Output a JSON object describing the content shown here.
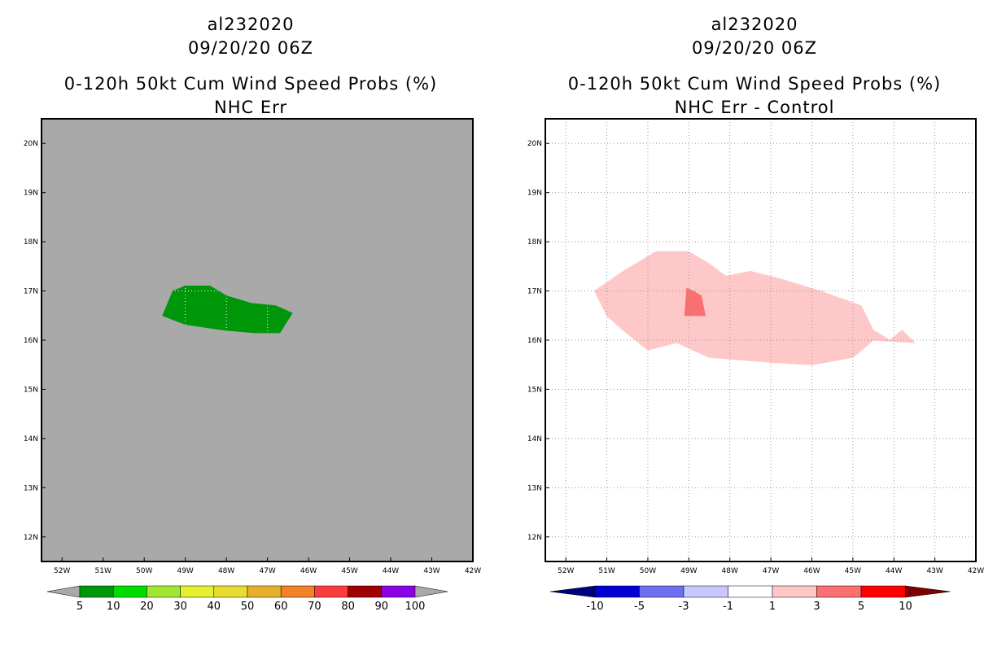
{
  "panels": [
    {
      "storm": "al232020",
      "datetime": "09/20/20 06Z",
      "title": "0-120h 50kt Cum Wind Speed Probs (%)",
      "subtitle": "NHC Err",
      "background": "#a9a9a9",
      "lon_ticks": [
        "52W",
        "51W",
        "50W",
        "49W",
        "48W",
        "47W",
        "46W",
        "45W",
        "44W",
        "43W",
        "42W"
      ],
      "lat_ticks": [
        "20N",
        "19N",
        "18N",
        "17N",
        "16N",
        "15N",
        "14N",
        "13N",
        "12N"
      ],
      "colorbar": {
        "labels": [
          "5",
          "10",
          "20",
          "30",
          "40",
          "50",
          "60",
          "70",
          "80",
          "90",
          "100"
        ],
        "colors": [
          "#00960a",
          "#00dc00",
          "#a0e632",
          "#e6f032",
          "#e6dc32",
          "#e6af2d",
          "#f08228",
          "#fa3c3c",
          "#a00000",
          "#8c00e6"
        ],
        "end_color": "#a9a9a9"
      },
      "regions": [
        {
          "label": "5-10%",
          "color": "#00960a",
          "points": [
            [
              -49.55,
              16.5
            ],
            [
              -49.3,
              17.0
            ],
            [
              -49.0,
              17.1
            ],
            [
              -48.4,
              17.1
            ],
            [
              -48.0,
              16.9
            ],
            [
              -47.4,
              16.75
            ],
            [
              -46.8,
              16.7
            ],
            [
              -46.4,
              16.55
            ],
            [
              -46.7,
              16.15
            ],
            [
              -47.3,
              16.15
            ],
            [
              -48.0,
              16.2
            ],
            [
              -49.0,
              16.32
            ],
            [
              -49.55,
              16.5
            ]
          ]
        }
      ]
    },
    {
      "storm": "al232020",
      "datetime": "09/20/20 06Z",
      "title": "0-120h 50kt Cum Wind Speed Probs (%)",
      "subtitle": "NHC Err - Control",
      "background": "#ffffff",
      "lon_ticks": [
        "52W",
        "51W",
        "50W",
        "49W",
        "48W",
        "47W",
        "46W",
        "45W",
        "44W",
        "43W",
        "42W"
      ],
      "lat_ticks": [
        "20N",
        "19N",
        "18N",
        "17N",
        "16N",
        "15N",
        "14N",
        "13N",
        "12N"
      ],
      "colorbar": {
        "labels": [
          "-10",
          "-5",
          "-3",
          "-1",
          "1",
          "3",
          "5",
          "10"
        ],
        "colors": [
          "#0000d2",
          "#6e6ef0",
          "#c8c8ff",
          "#ffffff",
          "#ffc8c8",
          "#fa7070",
          "#ff0000"
        ],
        "left_end_color": "#00007d",
        "right_end_color": "#7d0000"
      },
      "regions": [
        {
          "label": "1-3",
          "color": "#ffc8c8",
          "points": [
            [
              -51.3,
              17.0
            ],
            [
              -50.6,
              17.4
            ],
            [
              -49.8,
              17.8
            ],
            [
              -49.0,
              17.8
            ],
            [
              -48.5,
              17.55
            ],
            [
              -48.1,
              17.3
            ],
            [
              -47.5,
              17.4
            ],
            [
              -46.8,
              17.25
            ],
            [
              -45.8,
              17.0
            ],
            [
              -44.8,
              16.7
            ],
            [
              -44.5,
              16.2
            ],
            [
              -44.1,
              16.0
            ],
            [
              -43.8,
              16.2
            ],
            [
              -43.5,
              15.95
            ],
            [
              -44.5,
              16.0
            ],
            [
              -45.0,
              15.65
            ],
            [
              -46.0,
              15.5
            ],
            [
              -47.0,
              15.55
            ],
            [
              -48.5,
              15.65
            ],
            [
              -49.3,
              15.95
            ],
            [
              -50.0,
              15.8
            ],
            [
              -50.6,
              16.2
            ],
            [
              -51.0,
              16.5
            ],
            [
              -51.3,
              17.0
            ]
          ]
        },
        {
          "label": "3-5",
          "color": "#fa7070",
          "points": [
            [
              -49.1,
              16.5
            ],
            [
              -49.05,
              17.05
            ],
            [
              -48.9,
              17.0
            ],
            [
              -48.7,
              16.9
            ],
            [
              -48.6,
              16.5
            ],
            [
              -49.1,
              16.5
            ]
          ]
        }
      ]
    }
  ]
}
